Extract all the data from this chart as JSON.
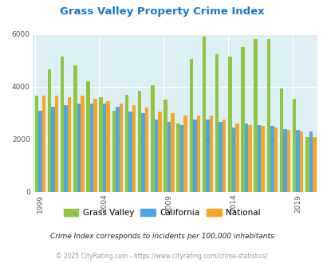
{
  "title": "Grass Valley Property Crime Index",
  "subtitle": "Crime Index corresponds to incidents per 100,000 inhabitants",
  "footer": "© 2025 CityRating.com - https://www.cityrating.com/crime-statistics/",
  "years": [
    1999,
    2000,
    2001,
    2002,
    2003,
    2004,
    2005,
    2006,
    2007,
    2008,
    2009,
    2010,
    2011,
    2012,
    2013,
    2014,
    2015,
    2016,
    2017,
    2018,
    2019,
    2020
  ],
  "grass_valley": [
    3650,
    4650,
    5150,
    4800,
    4200,
    3600,
    3100,
    3700,
    3850,
    4050,
    3500,
    2600,
    5050,
    5900,
    5250,
    5150,
    5500,
    5800,
    5800,
    3950,
    3550,
    2100
  ],
  "california": [
    3100,
    3250,
    3300,
    3350,
    3350,
    3350,
    3250,
    3050,
    3000,
    2750,
    2650,
    2550,
    2750,
    2750,
    2650,
    2450,
    2600,
    2550,
    2500,
    2400,
    2350,
    2300
  ],
  "national": [
    3650,
    3650,
    3600,
    3650,
    3550,
    3450,
    3350,
    3300,
    3200,
    3050,
    3000,
    2900,
    2900,
    2900,
    2750,
    2600,
    2550,
    2500,
    2450,
    2350,
    2300,
    2100
  ],
  "gv_color": "#8dc63f",
  "ca_color": "#4da6e8",
  "na_color": "#f5a623",
  "bg_color": "#ddeef5",
  "ylim": [
    0,
    6000
  ],
  "yticks": [
    0,
    2000,
    4000,
    6000
  ],
  "xtick_years": [
    1999,
    2004,
    2009,
    2014,
    2019
  ],
  "title_color": "#1a7ac7",
  "subtitle_color": "#222222",
  "footer_color": "#999999",
  "grid_color": "#ffffff",
  "bar_width": 0.28
}
